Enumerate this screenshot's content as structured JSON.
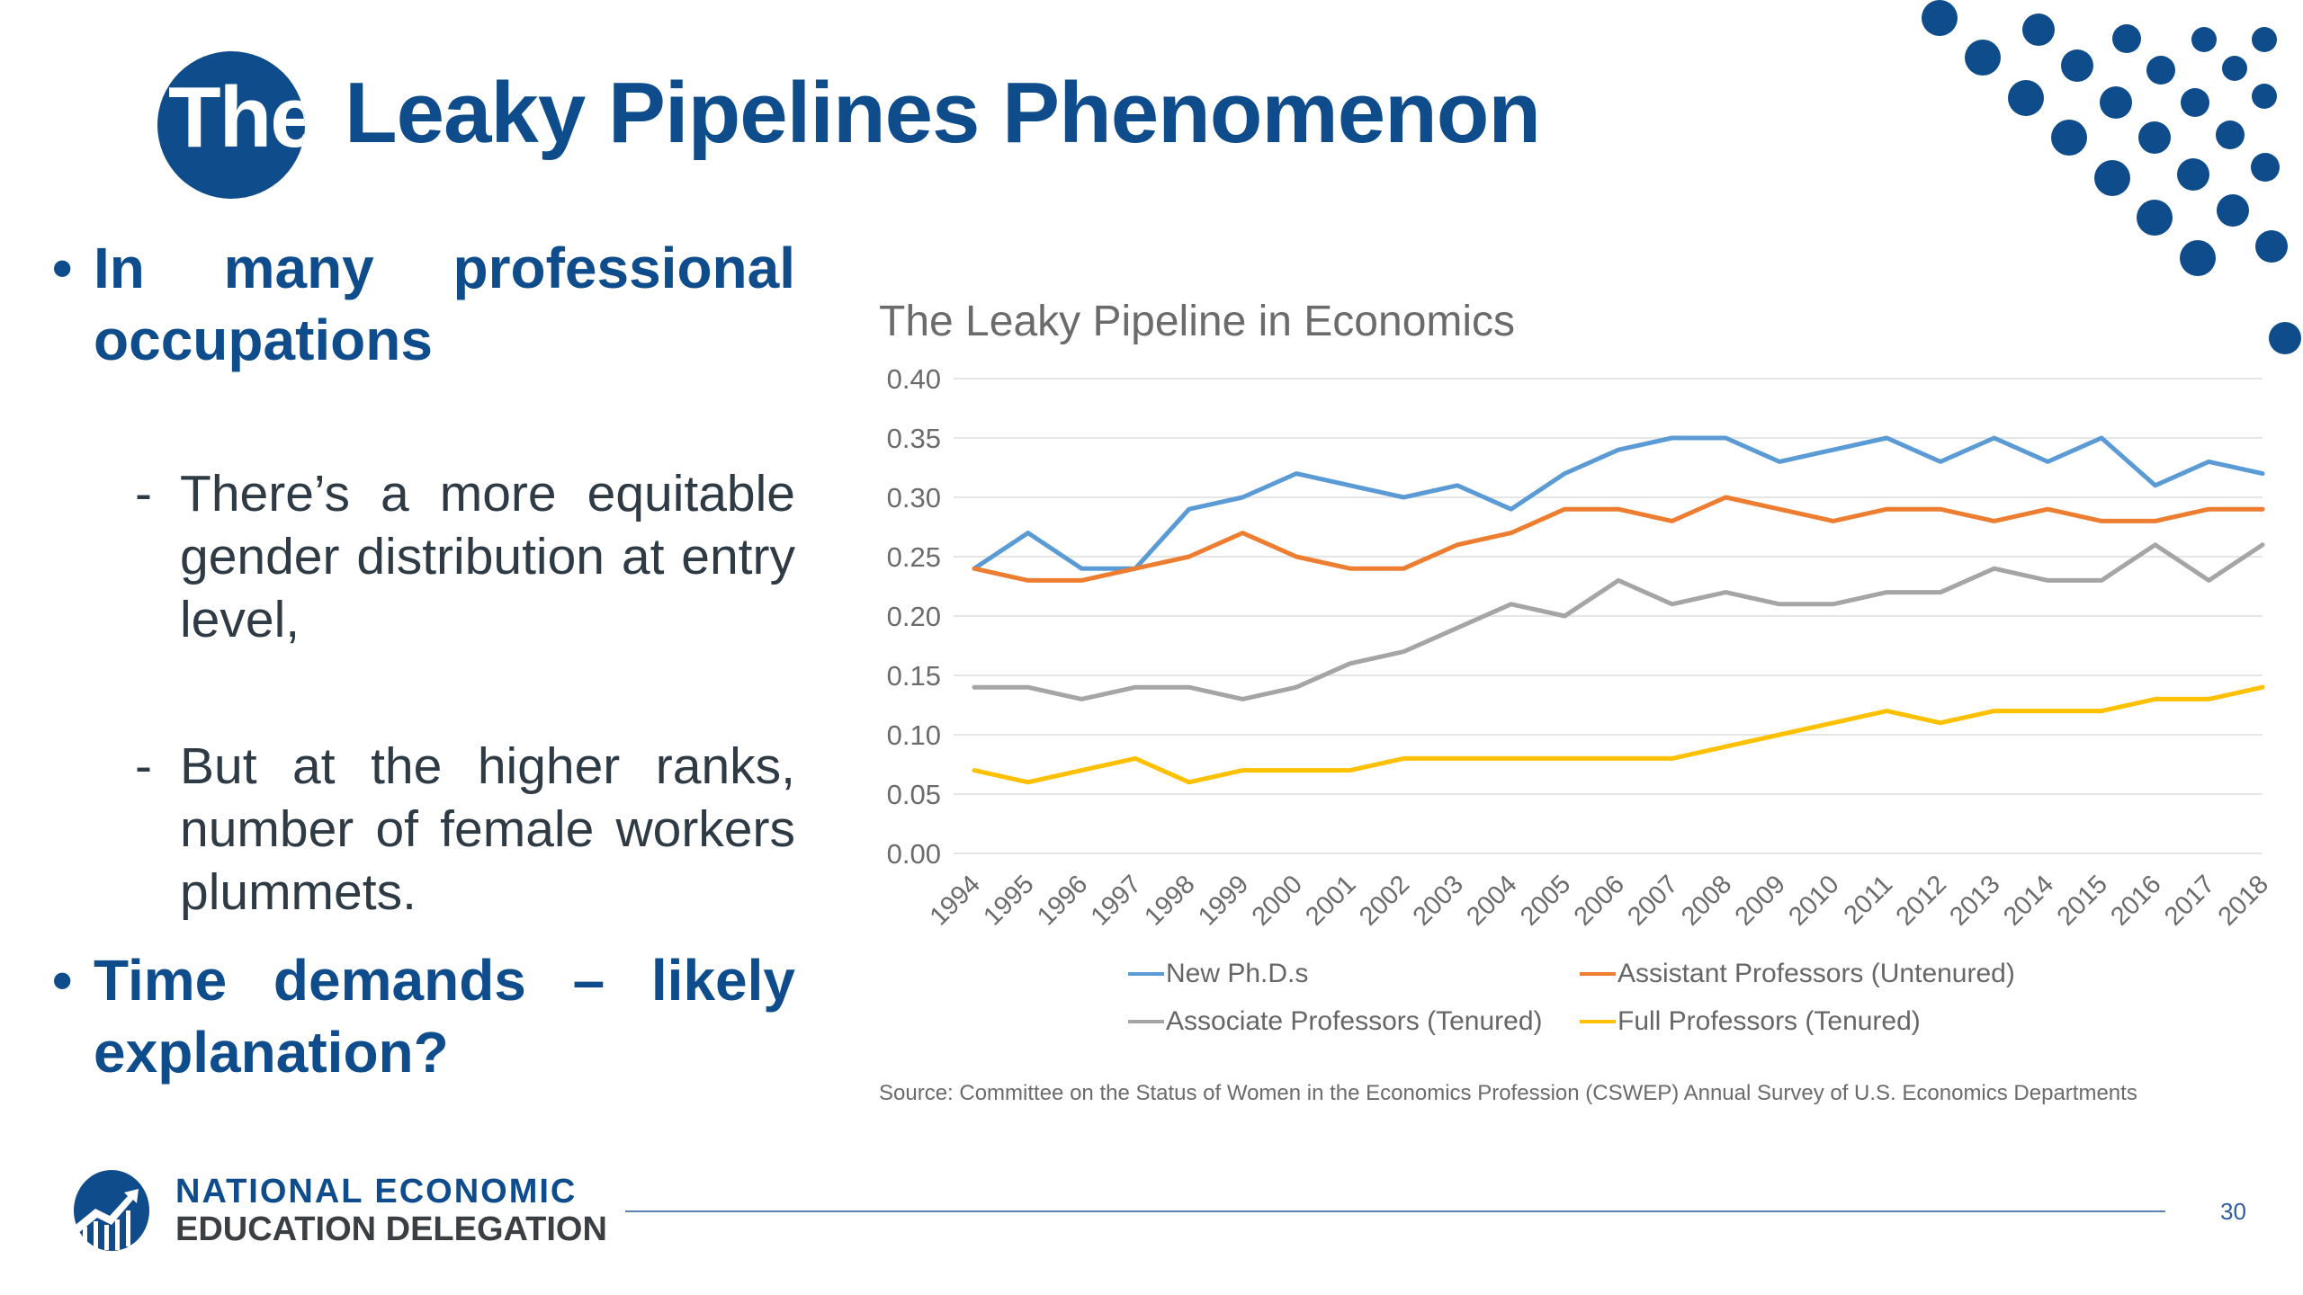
{
  "slide": {
    "title_prefix": "The",
    "title": "Leaky Pipelines Phenomenon",
    "page_number": "30",
    "brand_color": "#0E4C8C"
  },
  "bullets": [
    {
      "marker": "•",
      "text": "In many professional occupations",
      "sub": [
        {
          "marker": "-",
          "text": "There’s a more equitable gender distribution at entry level,"
        },
        {
          "marker": "-",
          "text": "But at the higher ranks, number of female workers plummets."
        }
      ]
    },
    {
      "marker": "•",
      "text": "Time demands – likely explanation?",
      "sub": []
    }
  ],
  "footer": {
    "org_line1": "NATIONAL ECONOMIC",
    "org_line2": "EDUCATION DELEGATION"
  },
  "chart_data": {
    "type": "line",
    "title": "The Leaky Pipeline in Economics",
    "xlabel": "",
    "ylabel": "",
    "ylim": [
      0,
      0.4
    ],
    "ytick_step": 0.05,
    "yticks": [
      "0.00",
      "0.05",
      "0.10",
      "0.15",
      "0.20",
      "0.25",
      "0.30",
      "0.35",
      "0.40"
    ],
    "grid": true,
    "legend_position": "bottom",
    "x": [
      "1994",
      "1995",
      "1996",
      "1997",
      "1998",
      "1999",
      "2000",
      "2001",
      "2002",
      "2003",
      "2004",
      "2005",
      "2006",
      "2007",
      "2008",
      "2009",
      "2010",
      "2011",
      "2012",
      "2013",
      "2014",
      "2015",
      "2016",
      "2017",
      "2018"
    ],
    "series": [
      {
        "name": "New Ph.D.s",
        "color": "#5B9BD5",
        "values": [
          0.24,
          0.27,
          0.24,
          0.24,
          0.29,
          0.3,
          0.32,
          0.31,
          0.3,
          0.31,
          0.29,
          0.32,
          0.34,
          0.35,
          0.35,
          0.33,
          0.34,
          0.35,
          0.33,
          0.35,
          0.33,
          0.35,
          0.31,
          0.33,
          0.32
        ]
      },
      {
        "name": "Assistant Professors (Untenured)",
        "color": "#ED7D31",
        "values": [
          0.24,
          0.23,
          0.23,
          0.24,
          0.25,
          0.27,
          0.25,
          0.24,
          0.24,
          0.26,
          0.27,
          0.29,
          0.29,
          0.28,
          0.3,
          0.29,
          0.28,
          0.29,
          0.29,
          0.28,
          0.29,
          0.28,
          0.28,
          0.29,
          0.29
        ]
      },
      {
        "name": "Associate Professors (Tenured)",
        "color": "#A5A5A5",
        "values": [
          0.14,
          0.14,
          0.13,
          0.14,
          0.14,
          0.13,
          0.14,
          0.16,
          0.17,
          0.19,
          0.21,
          0.2,
          0.23,
          0.21,
          0.22,
          0.21,
          0.21,
          0.22,
          0.22,
          0.24,
          0.23,
          0.23,
          0.26,
          0.23,
          0.26
        ]
      },
      {
        "name": "Full Professors (Tenured)",
        "color": "#FFC000",
        "values": [
          0.07,
          0.06,
          0.07,
          0.08,
          0.06,
          0.07,
          0.07,
          0.07,
          0.08,
          0.08,
          0.08,
          0.08,
          0.08,
          0.08,
          0.09,
          0.1,
          0.11,
          0.12,
          0.11,
          0.12,
          0.12,
          0.12,
          0.13,
          0.13,
          0.14
        ]
      }
    ],
    "source": "Source: Committee on the Status of Women in the Economics Profession (CSWEP) Annual Survey of U.S. Economics Departments"
  }
}
